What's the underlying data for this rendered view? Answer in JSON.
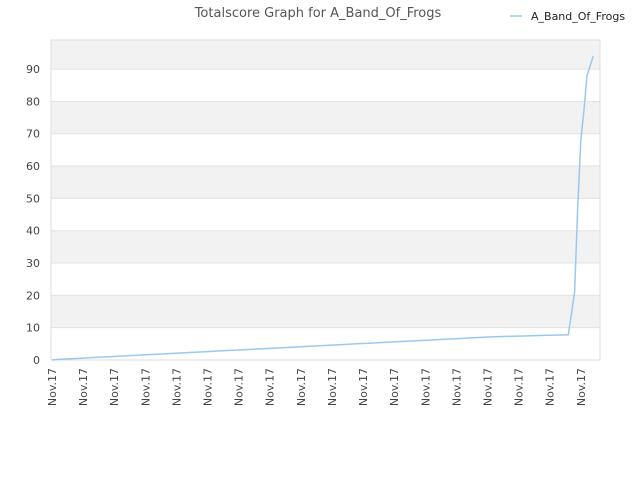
{
  "chart_data": {
    "type": "line",
    "title": "Totalscore Graph for A_Band_Of_Frogs",
    "xlabel": "",
    "ylabel": "",
    "legend": {
      "position": "top-right",
      "entries": [
        "A_Band_Of_Frogs"
      ]
    },
    "grid": true,
    "ylim": [
      0,
      99
    ],
    "yticks": [
      0,
      10,
      20,
      30,
      40,
      50,
      60,
      70,
      80,
      90
    ],
    "xticklabels": [
      "Nov.17",
      "Nov.17",
      "Nov.17",
      "Nov.17",
      "Nov.17",
      "Nov.17",
      "Nov.17",
      "Nov.17",
      "Nov.17",
      "Nov.17",
      "Nov.17",
      "Nov.17",
      "Nov.17",
      "Nov.17",
      "Nov.17",
      "Nov.17",
      "Nov.17",
      "Nov.17"
    ],
    "series": [
      {
        "name": "A_Band_Of_Frogs",
        "color": "#99c9f0",
        "x": [
          0.0,
          0.2,
          0.6,
          1.0,
          1.4,
          1.8,
          2.2,
          2.6,
          3.0,
          3.4,
          3.8,
          4.2,
          4.6,
          5.0,
          5.4,
          5.8,
          6.2,
          6.6,
          7.0,
          7.4,
          7.8,
          8.2,
          8.6,
          9.0,
          9.4,
          9.8,
          10.2,
          10.6,
          11.0,
          11.4,
          11.8,
          12.2,
          12.6,
          13.0,
          13.4,
          13.8,
          14.2,
          14.6,
          15.0,
          15.4,
          15.8,
          16.2,
          16.6,
          16.8,
          16.9,
          17.0,
          17.1,
          17.2,
          17.4
        ],
        "y": [
          0,
          0.2,
          0.4,
          0.6,
          0.8,
          1.0,
          1.2,
          1.4,
          1.6,
          1.8,
          2.0,
          2.2,
          2.4,
          2.6,
          2.8,
          3.0,
          3.2,
          3.4,
          3.6,
          3.8,
          4.0,
          4.2,
          4.4,
          4.6,
          4.8,
          5.0,
          5.2,
          5.4,
          5.6,
          5.8,
          6.0,
          6.2,
          6.4,
          6.6,
          6.8,
          7.0,
          7.2,
          7.3,
          7.4,
          7.5,
          7.6,
          7.7,
          7.8,
          21,
          47,
          68,
          77,
          88,
          94
        ]
      }
    ]
  }
}
